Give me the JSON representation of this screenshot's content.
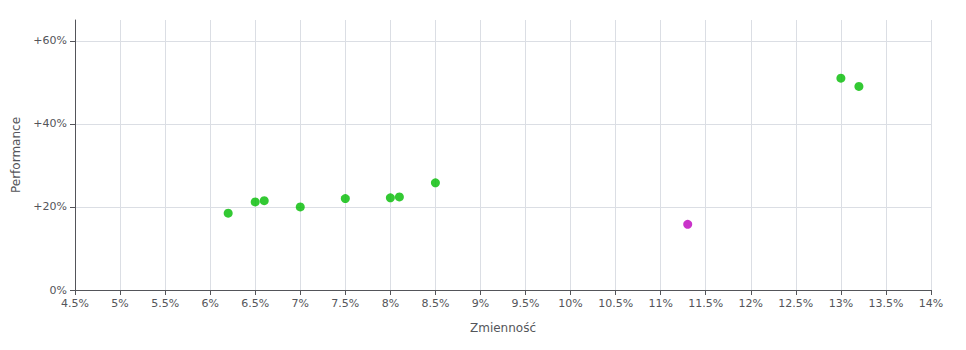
{
  "chart_data": {
    "type": "scatter",
    "xlabel": "Zmienność",
    "ylabel": "Performance",
    "xlim": [
      0.045,
      0.14
    ],
    "ylim": [
      0.0,
      0.65
    ],
    "xticks": [
      {
        "value": 0.045,
        "label": "4.5%"
      },
      {
        "value": 0.05,
        "label": "5%"
      },
      {
        "value": 0.055,
        "label": "5.5%"
      },
      {
        "value": 0.06,
        "label": "6%"
      },
      {
        "value": 0.065,
        "label": "6.5%"
      },
      {
        "value": 0.07,
        "label": "7%"
      },
      {
        "value": 0.075,
        "label": "7.5%"
      },
      {
        "value": 0.08,
        "label": "8%"
      },
      {
        "value": 0.085,
        "label": "8.5%"
      },
      {
        "value": 0.09,
        "label": "9%"
      },
      {
        "value": 0.095,
        "label": "9.5%"
      },
      {
        "value": 0.1,
        "label": "10%"
      },
      {
        "value": 0.105,
        "label": "10.5%"
      },
      {
        "value": 0.11,
        "label": "11%"
      },
      {
        "value": 0.115,
        "label": "11.5%"
      },
      {
        "value": 0.12,
        "label": "12%"
      },
      {
        "value": 0.125,
        "label": "12.5%"
      },
      {
        "value": 0.13,
        "label": "13%"
      },
      {
        "value": 0.135,
        "label": "13.5%"
      },
      {
        "value": 0.14,
        "label": "14%"
      }
    ],
    "yticks": [
      {
        "value": 0.0,
        "label": "0%"
      },
      {
        "value": 0.2,
        "label": "+20%"
      },
      {
        "value": 0.4,
        "label": "+40%"
      },
      {
        "value": 0.6,
        "label": "+60%"
      }
    ],
    "grid": true,
    "series": [
      {
        "color": "#00bb00",
        "x": [
          0.062,
          0.065,
          0.066,
          0.07,
          0.075,
          0.08,
          0.081,
          0.085,
          0.13,
          0.132
        ],
        "values": [
          0.185,
          0.212,
          0.215,
          0.2,
          0.22,
          0.222,
          0.224,
          0.258,
          0.51,
          0.49
        ]
      },
      {
        "color": "#bb00bb",
        "x": [
          0.113
        ],
        "values": [
          0.158
        ]
      }
    ]
  }
}
